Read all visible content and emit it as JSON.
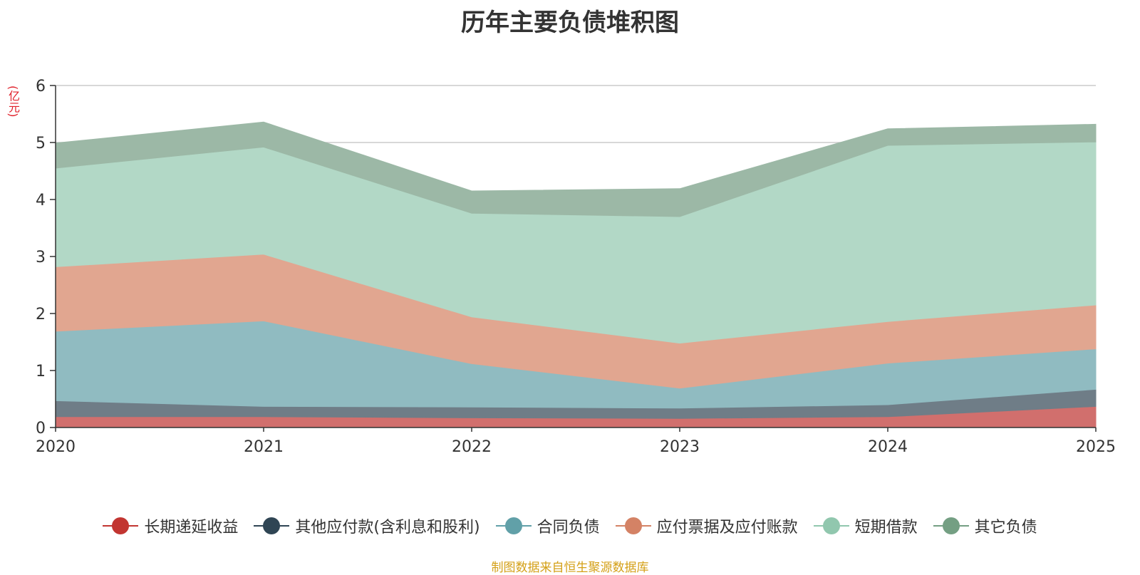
{
  "chart_data": {
    "type": "area",
    "stacked": true,
    "title": "历年主要负债堆积图",
    "ylabel": "(亿元)",
    "xlabel": "",
    "x": [
      "2020",
      "2021",
      "2022",
      "2023",
      "2024",
      "2025"
    ],
    "ylim": [
      0,
      6
    ],
    "yticks": [
      "0",
      "1",
      "2",
      "3",
      "4",
      "5",
      "6"
    ],
    "grid": true,
    "legend_position": "bottom",
    "series": [
      {
        "name": "长期递延收益",
        "color": "#c23531",
        "fill": "#d16f6d",
        "values": [
          0.19,
          0.19,
          0.17,
          0.16,
          0.19,
          0.37
        ]
      },
      {
        "name": "其他应付款(含利息和股利)",
        "color": "#2f4554",
        "fill": "#6f7d87",
        "values": [
          0.28,
          0.18,
          0.19,
          0.18,
          0.21,
          0.3
        ]
      },
      {
        "name": "合同负债",
        "color": "#61a0a8",
        "fill": "#90bbc1",
        "values": [
          1.22,
          1.5,
          0.76,
          0.35,
          0.73,
          0.71
        ]
      },
      {
        "name": "应付票据及应付账款",
        "color": "#d48265",
        "fill": "#e1a690",
        "values": [
          1.13,
          1.17,
          0.82,
          0.79,
          0.73,
          0.77
        ]
      },
      {
        "name": "短期借款",
        "color": "#91c7ae",
        "fill": "#b2d8c6",
        "values": [
          1.73,
          1.88,
          1.82,
          2.22,
          3.09,
          2.86
        ]
      },
      {
        "name": "其它负债",
        "color": "#749f83",
        "fill": "#9cb8a6",
        "values": [
          0.44,
          0.44,
          0.39,
          0.49,
          0.29,
          0.31
        ]
      }
    ]
  },
  "footer": {
    "source_note": "制图数据来自恒生聚源数据库"
  }
}
